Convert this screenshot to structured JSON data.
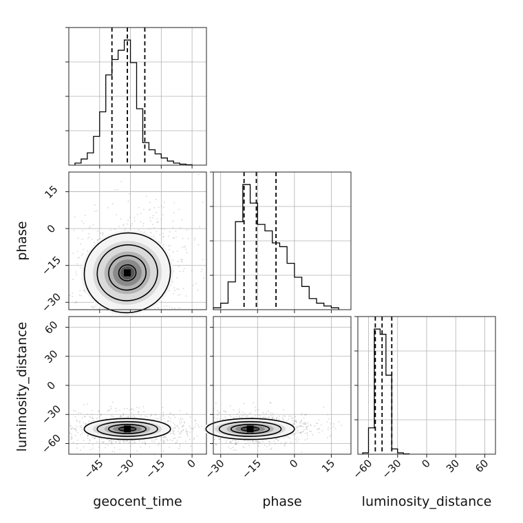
{
  "chart_data": {
    "type": "corner",
    "parameters": [
      "geocent_time",
      "phase",
      "luminosity_distance"
    ],
    "ranges": {
      "geocent_time": [
        -60,
        7
      ],
      "phase": [
        -33,
        23
      ],
      "luminosity_distance": [
        -71,
        71
      ]
    },
    "ticks": {
      "geocent_time": [
        -45,
        -30,
        -15,
        0
      ],
      "phase": [
        -30,
        -15,
        0,
        15
      ],
      "luminosity_distance": [
        -60,
        -30,
        0,
        30,
        60
      ]
    },
    "tick_labels": {
      "geocent_time": [
        "−45",
        "−30",
        "−15",
        "0"
      ],
      "phase": [
        "−30",
        "−15",
        "0",
        "15"
      ],
      "luminosity_distance": [
        "−60",
        "−30",
        "0",
        "30",
        "60"
      ]
    },
    "grid": true,
    "histograms": {
      "geocent_time": {
        "edges": [
          -57,
          -54,
          -51,
          -48,
          -45,
          -42,
          -39,
          -36,
          -33,
          -30,
          -27,
          -24,
          -21,
          -18,
          -15,
          -12,
          -9,
          -6,
          -3,
          0
        ],
        "counts": [
          2,
          6,
          12,
          28,
          52,
          88,
          103,
          112,
          122,
          100,
          55,
          22,
          15,
          11,
          7,
          4,
          2,
          1,
          0.4
        ],
        "quantiles": [
          -39,
          -31.5,
          -23
        ]
      },
      "phase": {
        "edges": [
          -33,
          -30,
          -27,
          -24,
          -21,
          -18,
          -15,
          -12,
          -9,
          -6,
          -3,
          0,
          3,
          6,
          9,
          12,
          15,
          18
        ],
        "counts": [
          2,
          7,
          30,
          95,
          135,
          115,
          92,
          85,
          72,
          68,
          50,
          35,
          25,
          12,
          7,
          4,
          2
        ],
        "quantiles": [
          -20.5,
          -15.5,
          -7.5
        ]
      },
      "luminosity_distance": {
        "edges": [
          -66,
          -60,
          -54,
          -48,
          -42,
          -36,
          -30,
          -24,
          -18
        ],
        "counts": [
          2,
          40,
          190,
          182,
          120,
          8,
          2,
          0.5
        ],
        "quantiles": [
          -53,
          -46,
          -36
        ]
      }
    },
    "pairs": [
      {
        "x": "geocent_time",
        "y": "phase",
        "peak": [
          -31.5,
          -18
        ],
        "sigma": [
          7,
          6
        ],
        "tilt": 0.35
      },
      {
        "x": "geocent_time",
        "y": "luminosity_distance",
        "peak": [
          -31.5,
          -45
        ],
        "sigma": [
          7,
          4
        ],
        "tilt": 0
      },
      {
        "x": "phase",
        "y": "luminosity_distance",
        "peak": [
          -18,
          -45
        ],
        "sigma": [
          6,
          4
        ],
        "tilt": 0
      }
    ]
  }
}
